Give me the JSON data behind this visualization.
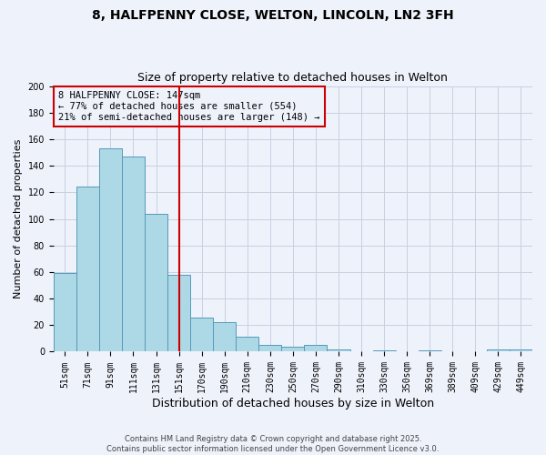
{
  "title1": "8, HALFPENNY CLOSE, WELTON, LINCOLN, LN2 3FH",
  "title2": "Size of property relative to detached houses in Welton",
  "xlabel": "Distribution of detached houses by size in Welton",
  "ylabel": "Number of detached properties",
  "categories": [
    "51sqm",
    "71sqm",
    "91sqm",
    "111sqm",
    "131sqm",
    "151sqm",
    "170sqm",
    "190sqm",
    "210sqm",
    "230sqm",
    "250sqm",
    "270sqm",
    "290sqm",
    "310sqm",
    "330sqm",
    "350sqm",
    "369sqm",
    "389sqm",
    "409sqm",
    "429sqm",
    "449sqm"
  ],
  "values": [
    59,
    124,
    153,
    147,
    104,
    58,
    26,
    22,
    11,
    5,
    4,
    5,
    2,
    0,
    1,
    0,
    1,
    0,
    0,
    2,
    2
  ],
  "bar_color": "#add8e6",
  "bar_edge_color": "#5599bb",
  "vline_x_idx": 5,
  "vline_color": "#cc0000",
  "annotation_title": "8 HALFPENNY CLOSE: 147sqm",
  "annotation_line1": "← 77% of detached houses are smaller (554)",
  "annotation_line2": "21% of semi-detached houses are larger (148) →",
  "annotation_box_color": "#cc0000",
  "footer1": "Contains HM Land Registry data © Crown copyright and database right 2025.",
  "footer2": "Contains public sector information licensed under the Open Government Licence v3.0.",
  "ylim": [
    0,
    200
  ],
  "yticks": [
    0,
    20,
    40,
    60,
    80,
    100,
    120,
    140,
    160,
    180,
    200
  ],
  "background_color": "#eef2fb",
  "grid_color": "#c8cfe0",
  "title1_fontsize": 10,
  "title2_fontsize": 9,
  "xlabel_fontsize": 9,
  "ylabel_fontsize": 8,
  "tick_fontsize": 7,
  "footer_fontsize": 6,
  "ann_fontsize": 7.5
}
